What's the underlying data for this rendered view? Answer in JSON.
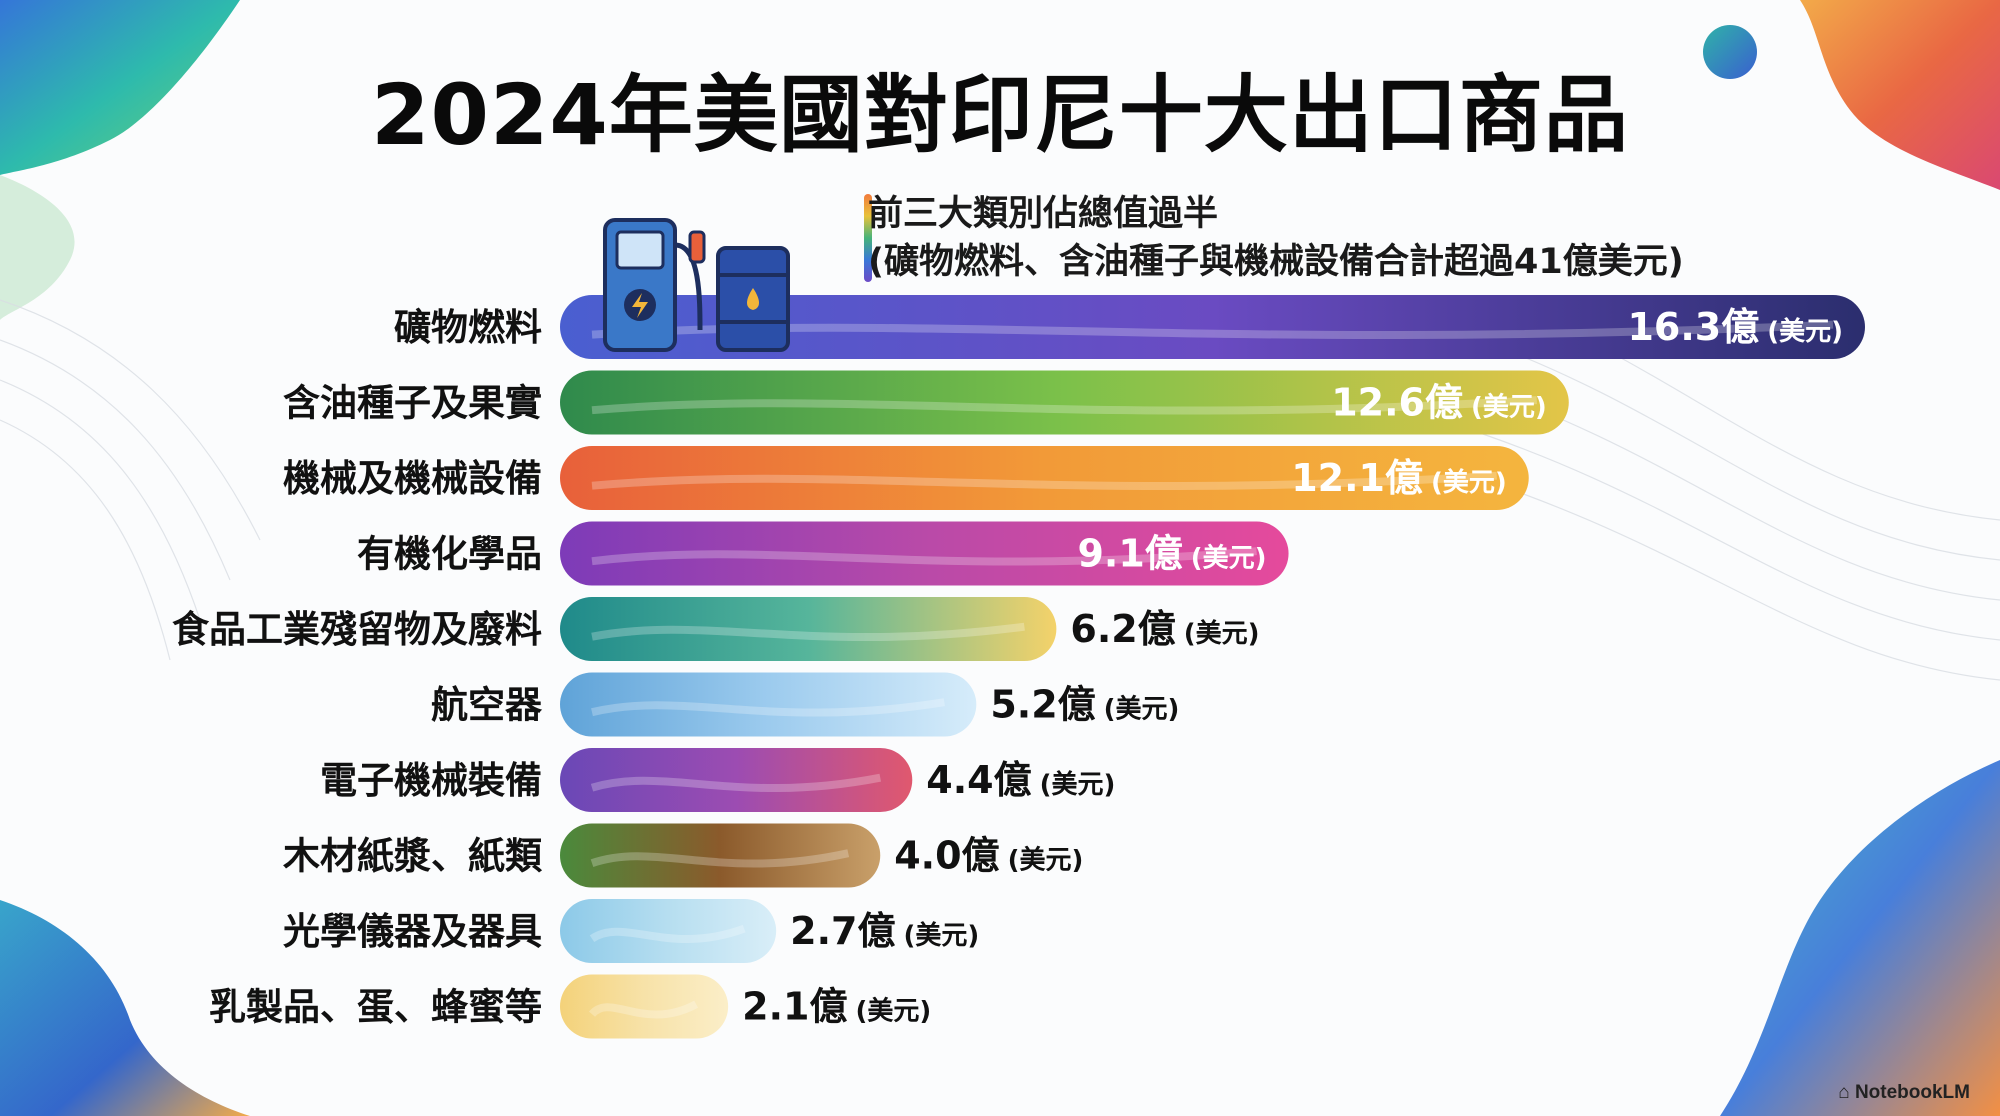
{
  "chart_data": {
    "type": "bar",
    "orientation": "horizontal",
    "title": "2024年美國對印尼十大出口商品",
    "annotation": {
      "line1": "前三大類別佔總值過半",
      "line2": "(礦物燃料、含油種子與機械設備合計超過41億美元)"
    },
    "unit_label": "(美元)",
    "categories": [
      "礦物燃料",
      "含油種子及果實",
      "機械及機械設備",
      "有機化學品",
      "食品工業殘留物及廢料",
      "航空器",
      "電子機械裝備",
      "木材紙漿、紙類",
      "光學儀器及器具",
      "乳製品、蛋、蜂蜜等"
    ],
    "values": [
      16.3,
      12.6,
      12.1,
      9.1,
      6.2,
      5.2,
      4.4,
      4.0,
      2.7,
      2.1
    ],
    "value_labels": [
      "16.3億",
      "12.6億",
      "12.1億",
      "9.1億",
      "6.2億",
      "5.2億",
      "4.4億",
      "4.0億",
      "2.7億",
      "2.1億"
    ],
    "bar_colors": [
      [
        "#4a5fd0",
        "#6a4bc2",
        "#2b2e6e"
      ],
      [
        "#2f8a4c",
        "#7cc14a",
        "#e3c548"
      ],
      [
        "#e8603a",
        "#f29a38",
        "#f4b53e"
      ],
      [
        "#7d3bb8",
        "#b94aa8",
        "#e54a9c"
      ],
      [
        "#1f8a8a",
        "#56b59b",
        "#f4d26a"
      ],
      [
        "#5fa3d8",
        "#9ccbee",
        "#d6ecfa"
      ],
      [
        "#6a48b6",
        "#9c4cb2",
        "#e0586e"
      ],
      [
        "#4a8a3c",
        "#8b5a2b",
        "#c9a06a"
      ],
      [
        "#8cc9e8",
        "#b6def0",
        "#d9eef8"
      ],
      [
        "#f4d27a",
        "#f7e2a8",
        "#fbeec8"
      ]
    ]
  },
  "brand": "NotebookLM"
}
